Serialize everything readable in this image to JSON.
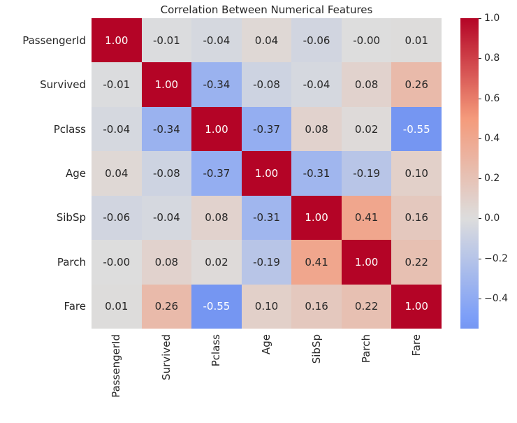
{
  "chart_data": {
    "type": "heatmap",
    "title": "Correlation Between Numerical Features",
    "labels": [
      "PassengerId",
      "Survived",
      "Pclass",
      "Age",
      "SibSp",
      "Parch",
      "Fare"
    ],
    "values": [
      [
        1.0,
        -0.01,
        -0.04,
        0.04,
        -0.06,
        -0.0,
        0.01
      ],
      [
        -0.01,
        1.0,
        -0.34,
        -0.08,
        -0.04,
        0.08,
        0.26
      ],
      [
        -0.04,
        -0.34,
        1.0,
        -0.37,
        0.08,
        0.02,
        -0.55
      ],
      [
        0.04,
        -0.08,
        -0.37,
        1.0,
        -0.31,
        -0.19,
        0.1
      ],
      [
        -0.06,
        -0.04,
        0.08,
        -0.31,
        1.0,
        0.41,
        0.16
      ],
      [
        -0.0,
        0.08,
        0.02,
        -0.19,
        0.41,
        1.0,
        0.22
      ],
      [
        0.01,
        0.26,
        -0.55,
        0.1,
        0.16,
        0.22,
        1.0
      ]
    ],
    "annotations": [
      [
        "1.00",
        "-0.01",
        "-0.04",
        "0.04",
        "-0.06",
        "-0.00",
        "0.01"
      ],
      [
        "-0.01",
        "1.00",
        "-0.34",
        "-0.08",
        "-0.04",
        "0.08",
        "0.26"
      ],
      [
        "-0.04",
        "-0.34",
        "1.00",
        "-0.37",
        "0.08",
        "0.02",
        "-0.55"
      ],
      [
        "0.04",
        "-0.08",
        "-0.37",
        "1.00",
        "-0.31",
        "-0.19",
        "0.10"
      ],
      [
        "-0.06",
        "-0.04",
        "0.08",
        "-0.31",
        "1.00",
        "0.41",
        "0.16"
      ],
      [
        "-0.00",
        "0.08",
        "0.02",
        "-0.19",
        "0.41",
        "1.00",
        "0.22"
      ],
      [
        "0.01",
        "0.26",
        "-0.55",
        "0.10",
        "0.16",
        "0.22",
        "1.00"
      ]
    ],
    "colormap": "coolwarm",
    "colormap_stops": [
      "#3B4CC0",
      "#7B9EF8",
      "#DDDDDD",
      "#F49A7B",
      "#B40426"
    ],
    "color_norm": {
      "vmin": -1.0,
      "vmax": 1.0,
      "center": 0
    },
    "data_range": {
      "min": -0.55,
      "max": 1.0
    },
    "colorbar_ticks": [
      1.0,
      0.8,
      0.6,
      0.4,
      0.2,
      0.0,
      -0.2,
      -0.4
    ],
    "colorbar_tick_labels": [
      "1.0",
      "0.8",
      "0.6",
      "0.4",
      "0.2",
      "0.0",
      "−0.2",
      "−0.4"
    ],
    "text_color_dark": "#262626",
    "text_color_light": "#ffffff",
    "legend_position": "right",
    "grid": false
  }
}
